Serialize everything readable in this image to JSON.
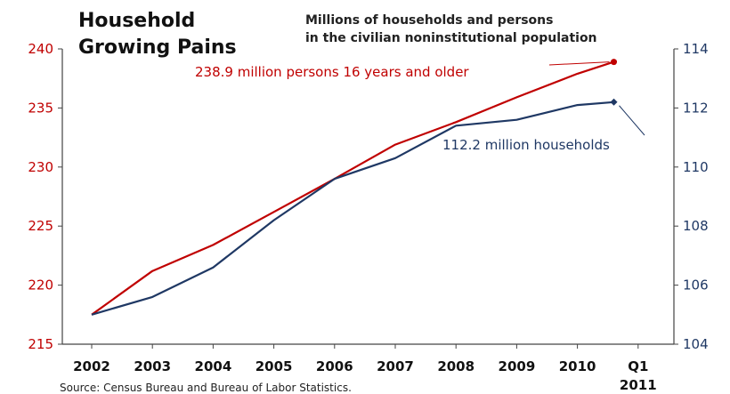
{
  "chart_data": {
    "type": "line",
    "title_lines": [
      "Household",
      "Growing Pains"
    ],
    "subtitle_lines": [
      "Millions of households and  persons",
      "in the civilian noninstitutional population"
    ],
    "categories": [
      "2002",
      "2003",
      "2004",
      "2005",
      "2006",
      "2007",
      "2008",
      "2009",
      "2010",
      "Q1\n2011"
    ],
    "category_lines": [
      [
        "2002"
      ],
      [
        "2003"
      ],
      [
        "2004"
      ],
      [
        "2005"
      ],
      [
        "2006"
      ],
      [
        "2007"
      ],
      [
        "2008"
      ],
      [
        "2009"
      ],
      [
        "2010"
      ],
      [
        "Q1",
        "2011"
      ]
    ],
    "x_positions": [
      0,
      1,
      2,
      3,
      4,
      5,
      6,
      7,
      8,
      9
    ],
    "series": [
      {
        "name": "persons 16 years and older",
        "axis": "left",
        "color": "#c00000",
        "x": [
          0,
          1,
          2,
          3,
          4,
          5,
          6,
          7,
          8,
          8.6
        ],
        "values": [
          217.5,
          221.2,
          223.4,
          226.2,
          229.0,
          231.9,
          233.8,
          235.9,
          237.9,
          238.9
        ]
      },
      {
        "name": "households",
        "axis": "right",
        "color": "#1f3864",
        "x": [
          0,
          1,
          2,
          3,
          4,
          5,
          6,
          7,
          8,
          8.6
        ],
        "values": [
          105.0,
          105.6,
          106.6,
          108.2,
          109.6,
          110.3,
          111.4,
          111.6,
          112.1,
          112.2
        ]
      }
    ],
    "left_axis": {
      "min": 215,
      "max": 240,
      "ticks": [
        215,
        220,
        225,
        230,
        235,
        240
      ],
      "color": "#c00000"
    },
    "right_axis": {
      "min": 104,
      "max": 114,
      "ticks": [
        104,
        106,
        108,
        110,
        112,
        114
      ],
      "color": "#1f3864"
    },
    "annotations": [
      {
        "text": "238.9 million persons 16 years and older",
        "series": 0,
        "color": "#c00000"
      },
      {
        "text": "112.2 million households",
        "series": 1,
        "color": "#1f3864"
      }
    ],
    "source": "Source:  Census Bureau and Bureau of Labor Statistics.",
    "grid": false
  }
}
